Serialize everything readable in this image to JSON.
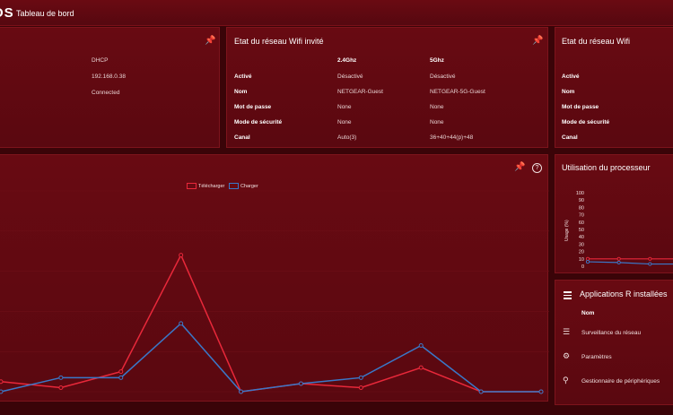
{
  "header": {
    "logo_text": "OS",
    "title": "Tableau de bord"
  },
  "connection_panel": {
    "pin_icon": "pin-icon",
    "values": [
      "DHCP",
      "192.168.0.38",
      "Connected"
    ]
  },
  "guest_wifi": {
    "title": "Etat du réseau Wifi invité",
    "columns": [
      "2.4Ghz",
      "5Ghz"
    ],
    "rows": [
      {
        "label": "Activé",
        "v24": "Désactivé",
        "v5": "Désactivé"
      },
      {
        "label": "Nom",
        "v24": "NETGEAR-Guest",
        "v5": "NETGEAR-5G-Guest"
      },
      {
        "label": "Mot de passe",
        "v24": "None",
        "v5": "None"
      },
      {
        "label": "Mode de sécurité",
        "v24": "None",
        "v5": "None"
      },
      {
        "label": "Canal",
        "v24": "Auto(3)",
        "v5": "36+40+44(p)+48"
      }
    ]
  },
  "wifi": {
    "title": "Etat du réseau Wifi",
    "rows": [
      "Activé",
      "Nom",
      "Mot de passe",
      "Mode de sécurité",
      "Canal"
    ]
  },
  "traffic": {
    "legend": [
      "Télécharger",
      "Charger"
    ],
    "colors": {
      "download": "#e8283a",
      "upload": "#3a78c8"
    },
    "download": [
      5,
      2,
      10,
      68,
      0,
      4,
      2,
      12,
      0,
      0
    ],
    "upload": [
      0,
      7,
      7,
      34,
      0,
      4,
      7,
      23,
      0,
      0
    ]
  },
  "cpu": {
    "title": "Utilisation du processeur",
    "ylabel": "Usage (%)",
    "ticks": [
      "100",
      "90",
      "80",
      "70",
      "60",
      "50",
      "40",
      "30",
      "20",
      "10",
      "0"
    ],
    "series1": [
      10,
      10,
      10,
      10
    ],
    "series2": [
      6,
      5,
      3,
      3
    ]
  },
  "apps": {
    "title": "Applications R installées",
    "col_header": "Nom",
    "items": [
      {
        "icon": "network-monitor-icon",
        "label": "Surveillance du réseau"
      },
      {
        "icon": "settings-icon",
        "label": "Paramètres"
      },
      {
        "icon": "device-manager-icon",
        "label": "Gestionnaire de périphériques"
      }
    ]
  }
}
